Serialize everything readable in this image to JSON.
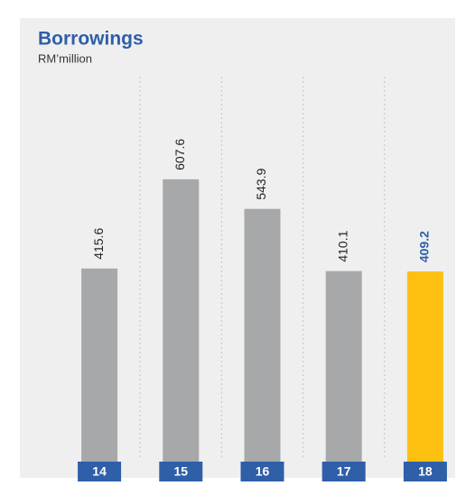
{
  "chart_data": {
    "type": "bar",
    "title": "Borrowings",
    "subtitle": "RM’million",
    "categories": [
      "14",
      "15",
      "16",
      "17",
      "18"
    ],
    "values": [
      415.6,
      607.6,
      543.9,
      410.1,
      409.2
    ],
    "colors": [
      "#a7a8aa",
      "#a7a8aa",
      "#a7a8aa",
      "#a7a8aa",
      "#fdc010"
    ],
    "value_label_colors": [
      "#222222",
      "#222222",
      "#222222",
      "#222222",
      "#2e5fa8"
    ],
    "ylim": [
      0,
      650
    ]
  }
}
